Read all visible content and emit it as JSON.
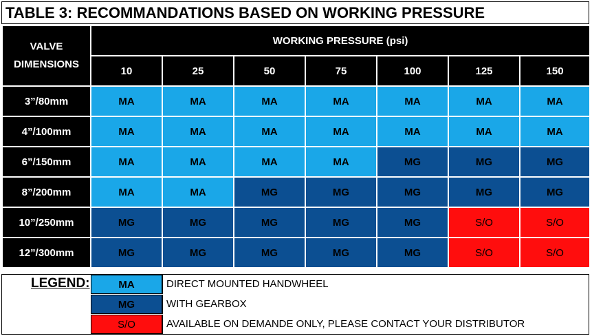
{
  "title": "TABLE 3: RECOMMANDATIONS BASED ON WORKING PRESSURE",
  "header": {
    "valve_label": "VALVE DIMENSIONS",
    "pressure_label": "WORKING PRESSURE (psi)",
    "pressures": [
      "10",
      "25",
      "50",
      "75",
      "100",
      "125",
      "150"
    ]
  },
  "rows": [
    {
      "label": "3”/80mm",
      "cells": [
        "MA",
        "MA",
        "MA",
        "MA",
        "MA",
        "MA",
        "MA"
      ]
    },
    {
      "label": "4”/100mm",
      "cells": [
        "MA",
        "MA",
        "MA",
        "MA",
        "MA",
        "MA",
        "MA"
      ]
    },
    {
      "label": "6”/150mm",
      "cells": [
        "MA",
        "MA",
        "MA",
        "MA",
        "MG",
        "MG",
        "MG"
      ]
    },
    {
      "label": "8”/200mm",
      "cells": [
        "MA",
        "MA",
        "MG",
        "MG",
        "MG",
        "MG",
        "MG"
      ]
    },
    {
      "label": "10”/250mm",
      "cells": [
        "MG",
        "MG",
        "MG",
        "MG",
        "MG",
        "S/O",
        "S/O"
      ]
    },
    {
      "label": "12”/300mm",
      "cells": [
        "MG",
        "MG",
        "MG",
        "MG",
        "MG",
        "S/O",
        "S/O"
      ]
    }
  ],
  "legend": {
    "title": "LEGEND:",
    "items": [
      {
        "code": "MA",
        "description": "DIRECT MOUNTED HANDWHEEL"
      },
      {
        "code": "MG",
        "description": "WITH GEARBOX"
      },
      {
        "code": "S/O",
        "description": "AVAILABLE ON DEMANDE ONLY, PLEASE CONTACT YOUR DISTRIBUTOR"
      }
    ]
  },
  "colors": {
    "MA": "#1aa7e8",
    "MG": "#0c4f92",
    "S/O": "#ff0d0d",
    "header": "#000000"
  }
}
